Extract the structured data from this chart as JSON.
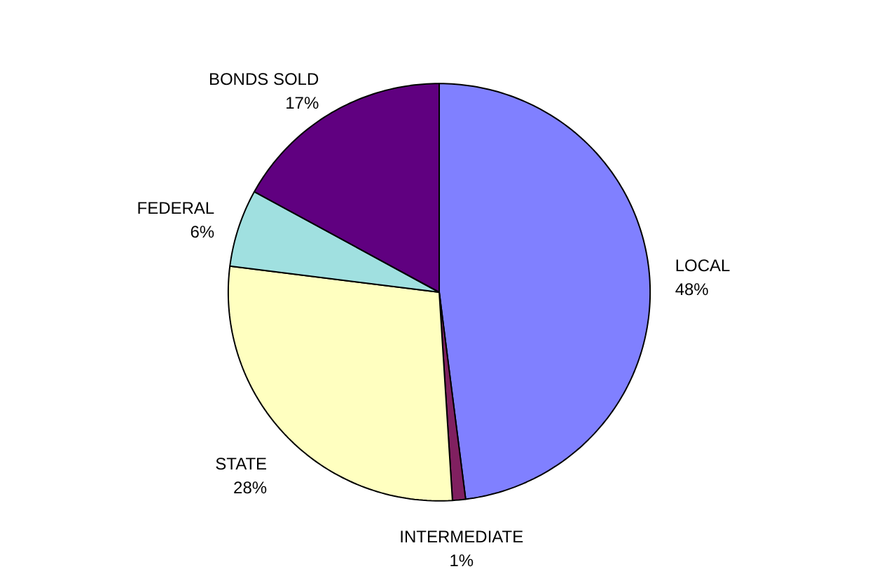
{
  "chart_data": {
    "type": "pie",
    "categories": [
      "LOCAL",
      "INTERMEDIATE",
      "STATE",
      "FEDERAL",
      "BONDS SOLD"
    ],
    "values": [
      48,
      1,
      28,
      6,
      17
    ],
    "value_labels": [
      "48%",
      "1%",
      "28%",
      "6%",
      "17%"
    ],
    "colors": [
      "#8080ff",
      "#802060",
      "#ffffc0",
      "#a0e0e0",
      "#600080"
    ]
  }
}
